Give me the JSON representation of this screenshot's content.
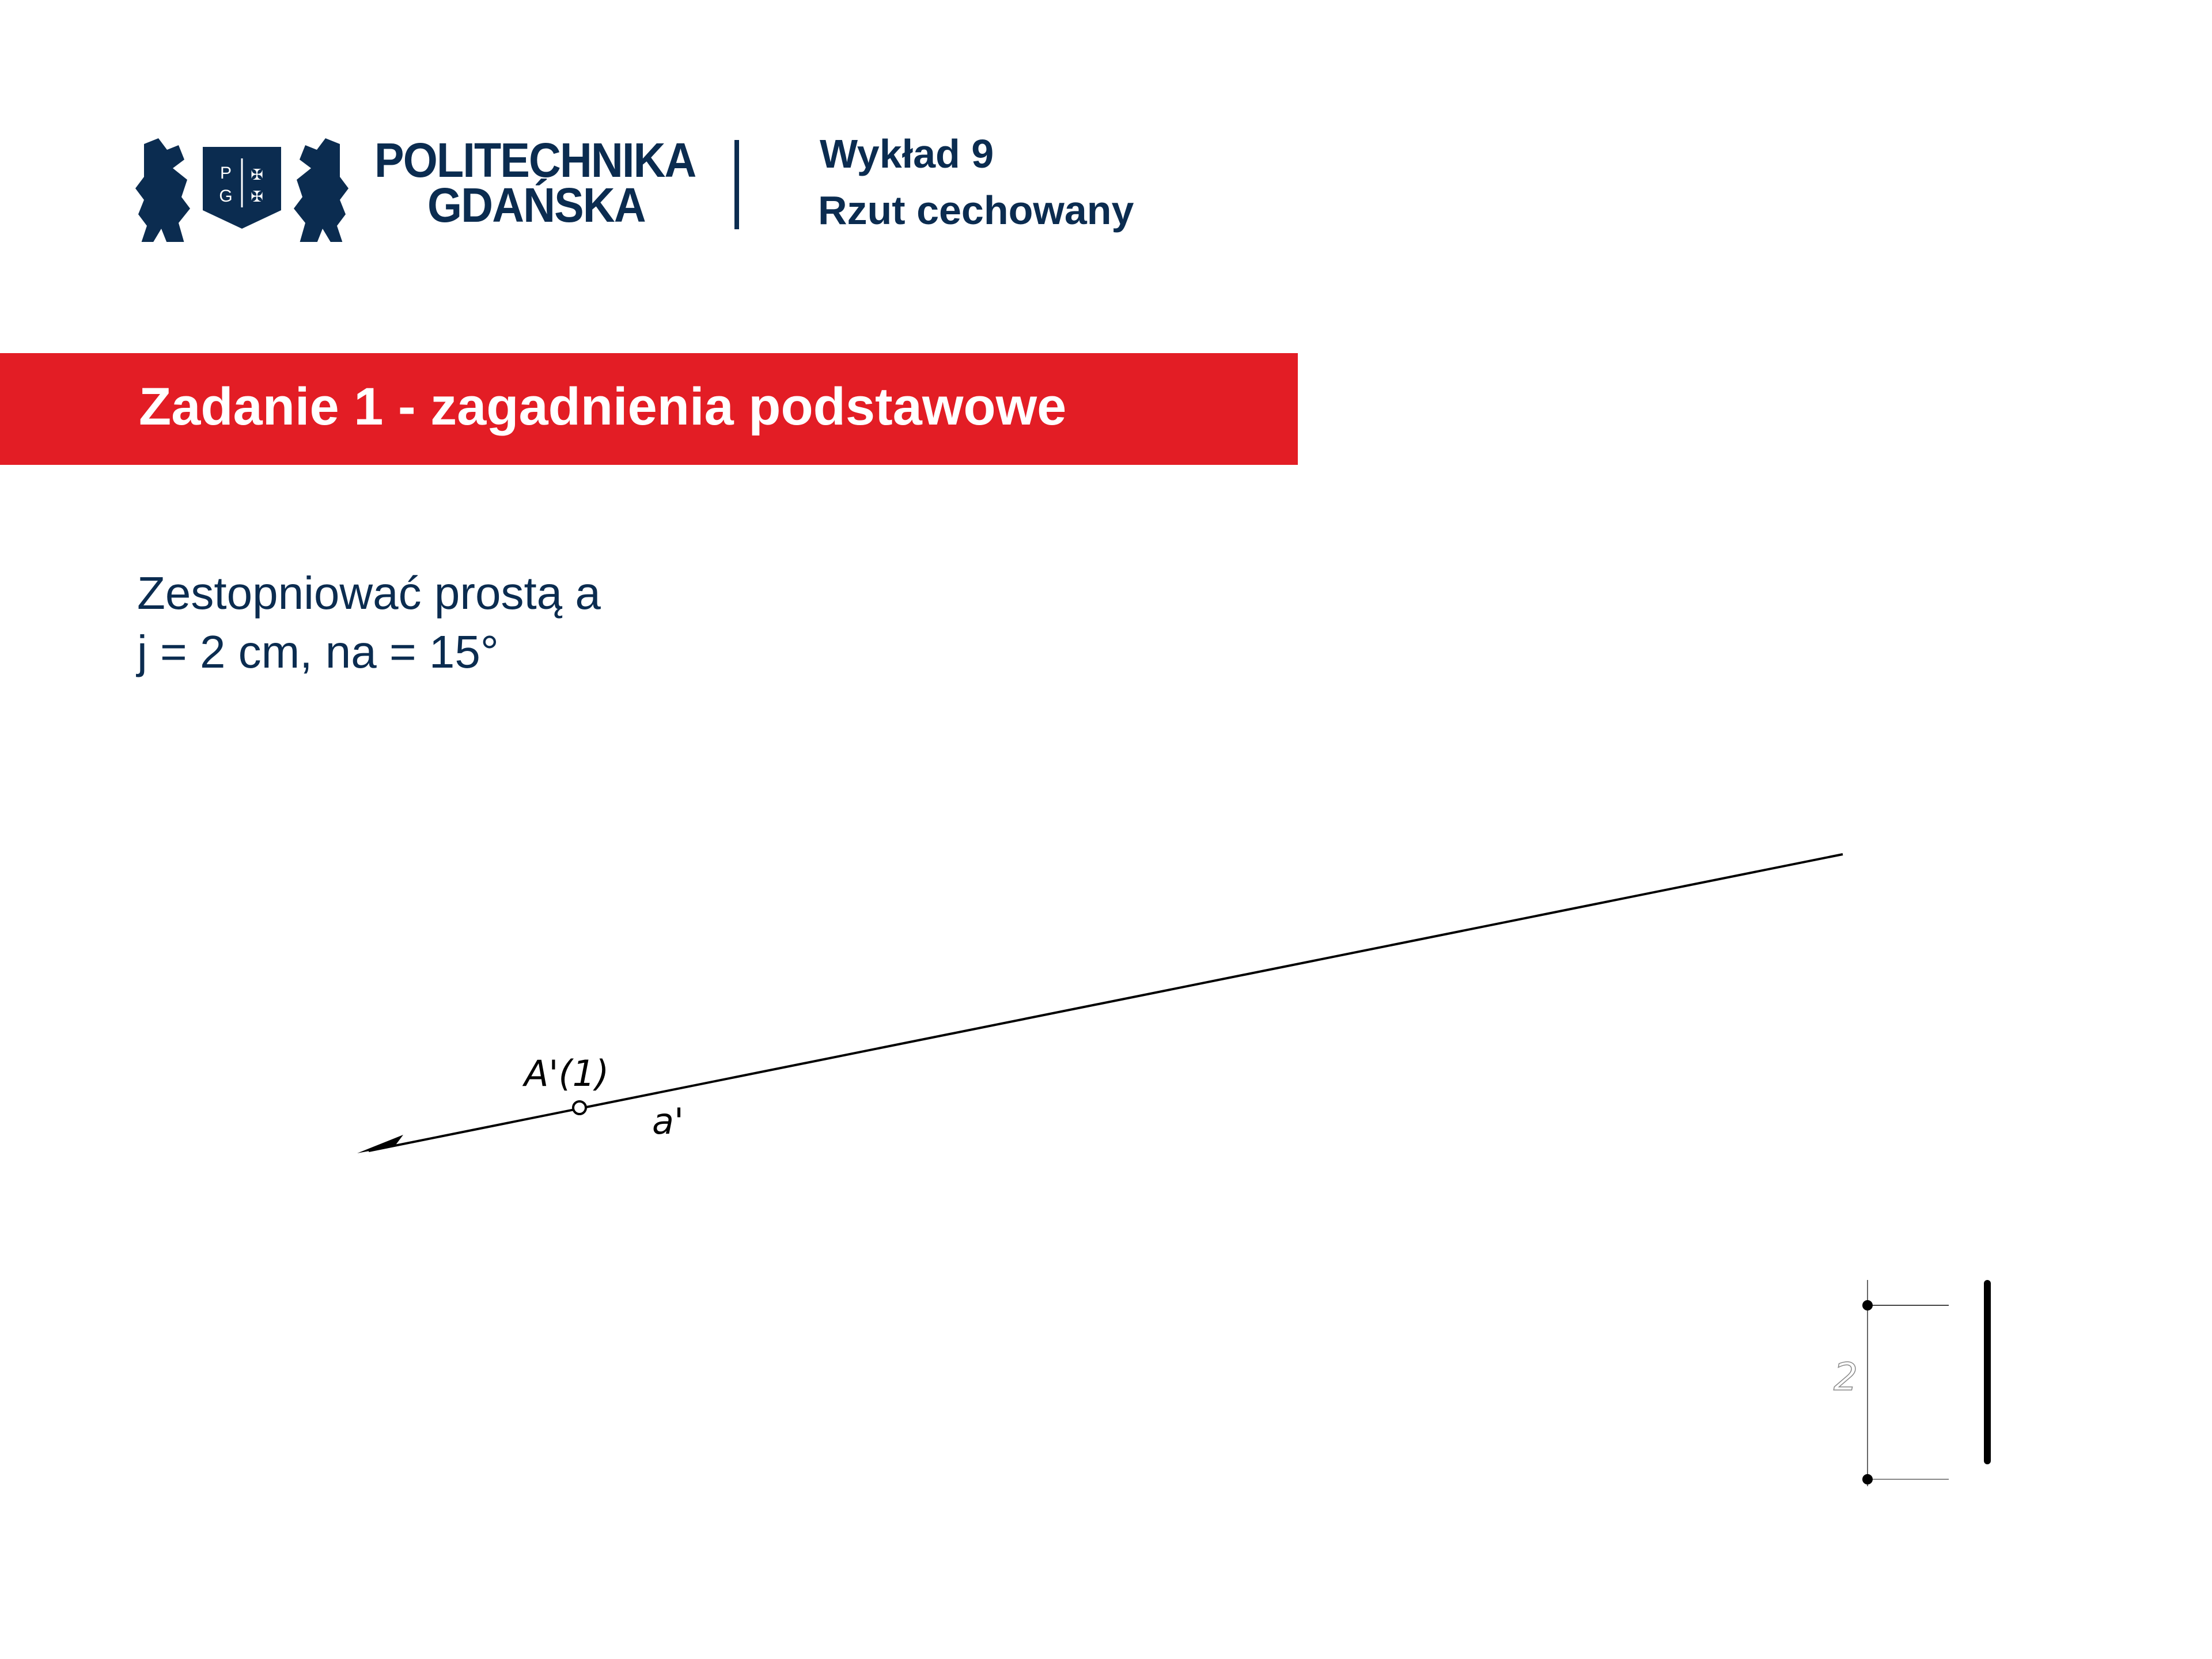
{
  "header": {
    "university_line1": "POLITECHNIKA",
    "university_line2": "GDAŃSKA",
    "logo_letters": "PG",
    "lecture": "Wykład 9",
    "topic": "Rzut cechowany"
  },
  "section": {
    "title": "Zadanie 1 - zagadnienia podstawowe"
  },
  "task": {
    "line1": "Zestopniować prostą a",
    "line2": "j = 2 cm, na = 15°"
  },
  "drawing": {
    "point_label": "A'(1)",
    "line_label": "a'",
    "scale_label": "2"
  },
  "colors": {
    "brand_navy": "#0b2c50",
    "band_red": "#e31d25"
  }
}
